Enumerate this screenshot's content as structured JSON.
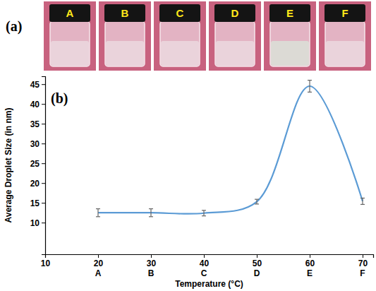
{
  "panel_a": {
    "label": "(a)",
    "vials": [
      "A",
      "B",
      "C",
      "D",
      "E",
      "F"
    ],
    "colors": [
      "#ead3db",
      "#ead3db",
      "#ead3db",
      "#ead3db",
      "#dcdad5",
      "#ead3db"
    ]
  },
  "chart_data": {
    "type": "line",
    "panel_label": "(b)",
    "x_label": "Temperature (°C)",
    "y_label": "Average Droplet Size (in nm)",
    "x": [
      20,
      30,
      40,
      50,
      60,
      70
    ],
    "categories": [
      "A",
      "B",
      "C",
      "D",
      "E",
      "F"
    ],
    "values": [
      12.5,
      12.5,
      12.4,
      15.3,
      44.5,
      15.4
    ],
    "errors": [
      1.0,
      1.0,
      0.7,
      0.6,
      1.5,
      0.8
    ],
    "color": "#5b9bd5",
    "marker": "none",
    "line_style": "solid",
    "xlim": [
      10,
      72
    ],
    "ylim": [
      2,
      47
    ],
    "xticks": [
      10,
      20,
      30,
      40,
      50,
      60,
      70
    ],
    "yticks": [
      10,
      15,
      20,
      25,
      30,
      35,
      40,
      45
    ],
    "grid": false
  }
}
